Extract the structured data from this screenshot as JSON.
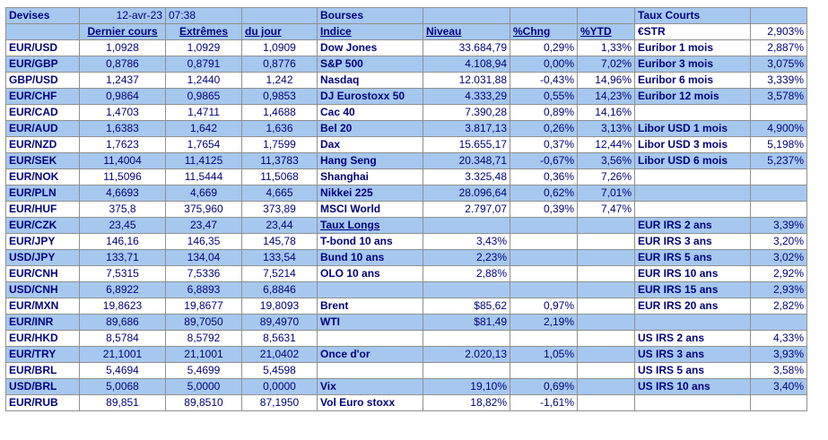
{
  "header": {
    "devises": "Devises",
    "date": "12-avr-23",
    "time": "07:38",
    "bourses": "Bourses",
    "taux_courts": "Taux Courts"
  },
  "subheader": {
    "dernier": "Dernier cours",
    "extremes": "Extrêmes",
    "du_jour": "du jour",
    "indice": "Indice",
    "niveau": "Niveau",
    "chng": "%Chng",
    "ytd": "%YTD",
    "estr": "€STR",
    "estr_val": "2,903%"
  },
  "rows": [
    {
      "c": "EUR/USD",
      "last": "1,0928",
      "hi": "1,0929",
      "lo": "1,0909",
      "idx": "Dow Jones",
      "lvl": "33.684,79",
      "chg": "0,29%",
      "ytd": "1,33%",
      "rate": "Euribor 1 mois",
      "rval": "2,887%"
    },
    {
      "c": "EUR/GBP",
      "last": "0,8786",
      "hi": "0,8791",
      "lo": "0,8776",
      "idx": "S&P 500",
      "lvl": "4.108,94",
      "chg": "0,00%",
      "ytd": "7,02%",
      "rate": "Euribor 3 mois",
      "rval": "3,075%"
    },
    {
      "c": "GBP/USD",
      "last": "1,2437",
      "hi": "1,2440",
      "lo": "1,242",
      "idx": "Nasdaq",
      "lvl": "12.031,88",
      "chg": "-0,43%",
      "ytd": "14,96%",
      "rate": "Euribor 6 mois",
      "rval": "3,339%"
    },
    {
      "c": "EUR/CHF",
      "last": "0,9864",
      "hi": "0,9865",
      "lo": "0,9853",
      "idx": "DJ Eurostoxx 50",
      "lvl": "4.333,29",
      "chg": "0,55%",
      "ytd": "14,23%",
      "rate": "Euribor 12 mois",
      "rval": "3,578%"
    },
    {
      "c": "EUR/CAD",
      "last": "1,4703",
      "hi": "1,4711",
      "lo": "1,4688",
      "idx": "Cac 40",
      "lvl": "7.390,28",
      "chg": "0,89%",
      "ytd": "14,16%",
      "rate": "",
      "rval": ""
    },
    {
      "c": "EUR/AUD",
      "last": "1,6383",
      "hi": "1,642",
      "lo": "1,636",
      "idx": "Bel 20",
      "lvl": "3.817,13",
      "chg": "0,26%",
      "ytd": "3,13%",
      "rate": "Libor USD 1 mois",
      "rval": "4,900%"
    },
    {
      "c": "EUR/NZD",
      "last": "1,7623",
      "hi": "1,7654",
      "lo": "1,7599",
      "idx": "Dax",
      "lvl": "15.655,17",
      "chg": "0,37%",
      "ytd": "12,44%",
      "rate": "Libor USD 3 mois",
      "rval": "5,198%"
    },
    {
      "c": "EUR/SEK",
      "last": "11,4004",
      "hi": "11,4125",
      "lo": "11,3783",
      "idx": "Hang Seng",
      "lvl": "20.348,71",
      "chg": "-0,67%",
      "ytd": "3,56%",
      "rate": "Libor USD 6 mois",
      "rval": "5,237%"
    },
    {
      "c": "EUR/NOK",
      "last": "11,5096",
      "hi": "11,5444",
      "lo": "11,5068",
      "idx": "Shanghai",
      "lvl": "3.325,48",
      "chg": "0,36%",
      "ytd": "7,26%",
      "rate": "",
      "rval": ""
    },
    {
      "c": "EUR/PLN",
      "last": "4,6693",
      "hi": "4,669",
      "lo": "4,665",
      "idx": "Nikkei 225",
      "lvl": "28.096,64",
      "chg": "0,62%",
      "ytd": "7,01%",
      "rate": "",
      "rval": ""
    },
    {
      "c": "EUR/HUF",
      "last": "375,8",
      "hi": "375,960",
      "lo": "373,89",
      "idx": "MSCI World",
      "lvl": "2.797,07",
      "chg": "0,39%",
      "ytd": "7,47%",
      "rate": "",
      "rval": ""
    },
    {
      "c": "EUR/CZK",
      "last": "23,45",
      "hi": "23,47",
      "lo": "23,44",
      "idx": "Taux Longs",
      "lvl": "",
      "chg": "",
      "ytd": "",
      "rate": "EUR IRS 2 ans",
      "rval": "3,39%"
    },
    {
      "c": "EUR/JPY",
      "last": "146,16",
      "hi": "146,35",
      "lo": "145,78",
      "idx": "T-bond 10 ans",
      "lvl": "3,43%",
      "chg": "",
      "ytd": "",
      "rate": "EUR IRS 3 ans",
      "rval": "3,20%"
    },
    {
      "c": "USD/JPY",
      "last": "133,71",
      "hi": "134,04",
      "lo": "133,54",
      "idx": "Bund 10 ans",
      "lvl": "2,23%",
      "chg": "",
      "ytd": "",
      "rate": "EUR IRS 5 ans",
      "rval": "3,02%"
    },
    {
      "c": "EUR/CNH",
      "last": "7,5315",
      "hi": "7,5336",
      "lo": "7,5214",
      "idx": "OLO 10 ans",
      "lvl": "2,88%",
      "chg": "",
      "ytd": "",
      "rate": "EUR IRS 10 ans",
      "rval": "2,92%"
    },
    {
      "c": "USD/CNH",
      "last": "6,8922",
      "hi": "6,8893",
      "lo": "6,8846",
      "idx": "",
      "lvl": "",
      "chg": "",
      "ytd": "",
      "rate": "EUR IRS 15 ans",
      "rval": "2,93%"
    },
    {
      "c": "EUR/MXN",
      "last": "19,8623",
      "hi": "19,8677",
      "lo": "19,8093",
      "idx": "Brent",
      "lvl": "$85,62",
      "chg": "0,97%",
      "ytd": "",
      "rate": "EUR IRS 20 ans",
      "rval": "2,82%"
    },
    {
      "c": "EUR/INR",
      "last": "89,686",
      "hi": "89,7050",
      "lo": "89,4970",
      "idx": "WTI",
      "lvl": "$81,49",
      "chg": "2,19%",
      "ytd": "",
      "rate": "",
      "rval": ""
    },
    {
      "c": "EUR/HKD",
      "last": "8,5784",
      "hi": "8,5792",
      "lo": "8,5631",
      "idx": "",
      "lvl": "",
      "chg": "",
      "ytd": "",
      "rate": "US IRS 2 ans",
      "rval": "4,33%"
    },
    {
      "c": "EUR/TRY",
      "last": "21,1001",
      "hi": "21,1001",
      "lo": "21,0402",
      "idx": "Once d'or",
      "lvl": "2.020,13",
      "chg": "1,05%",
      "ytd": "",
      "rate": "US IRS 3 ans",
      "rval": "3,93%"
    },
    {
      "c": "EUR/BRL",
      "last": "5,4694",
      "hi": "5,4699",
      "lo": "5,4598",
      "idx": "",
      "lvl": "",
      "chg": "",
      "ytd": "",
      "rate": "US IRS 5 ans",
      "rval": "3,58%"
    },
    {
      "c": "USD/BRL",
      "last": "5,0068",
      "hi": "5,0000",
      "lo": "0,0000",
      "idx": "Vix",
      "lvl": "19,10%",
      "chg": "0,69%",
      "ytd": "",
      "rate": "US IRS 10 ans",
      "rval": "3,40%"
    },
    {
      "c": "EUR/RUB",
      "last": "89,851",
      "hi": "89,8510",
      "lo": "87,1950",
      "idx": "Vol Euro stoxx",
      "lvl": "18,82%",
      "chg": "-1,61%",
      "ytd": "",
      "rate": "",
      "rval": ""
    }
  ]
}
